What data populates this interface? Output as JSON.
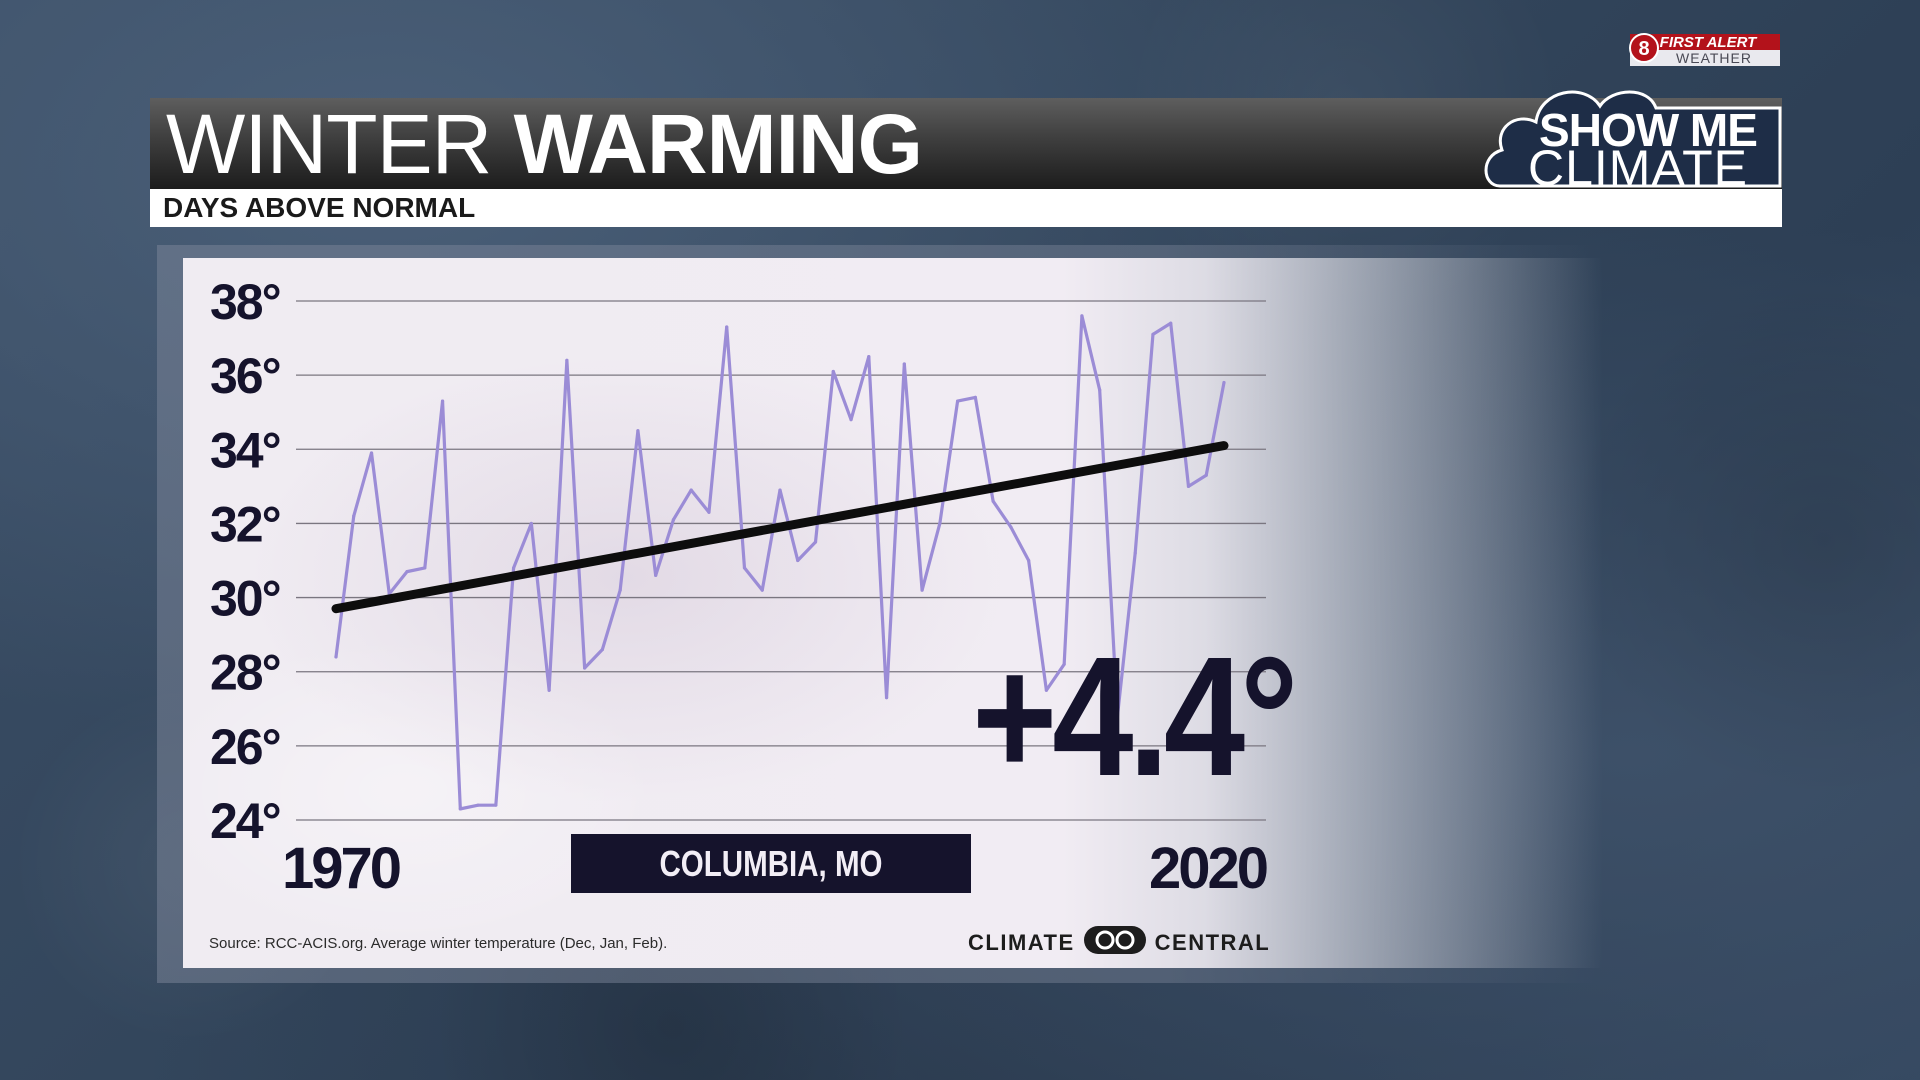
{
  "header": {
    "title_light": "WINTER ",
    "title_bold": "WARMING",
    "subtitle": "DAYS ABOVE NORMAL"
  },
  "logo": {
    "channel": "8",
    "top_line": "FIRST ALERT",
    "top_line_2": "WEATHER",
    "main_line_1": "SHOW ME",
    "main_line_2": "CLIMATE"
  },
  "chart_data": {
    "type": "line",
    "title": "",
    "xlabel": "",
    "ylabel": "",
    "x_tick_labels": [
      "1970",
      "2020"
    ],
    "y_tick_labels": [
      "38°",
      "36°",
      "34°",
      "32°",
      "30°",
      "28°",
      "26°",
      "24°"
    ],
    "xlim": [
      1970,
      2020
    ],
    "ylim": [
      24,
      38
    ],
    "grid": true,
    "legend": "none",
    "series": [
      {
        "x": [
          1970,
          1971,
          1972,
          1973,
          1974,
          1975,
          1976,
          1977,
          1978,
          1979,
          1980,
          1981,
          1982,
          1983,
          1984,
          1985,
          1986,
          1987,
          1988,
          1989,
          1990,
          1991,
          1992,
          1993,
          1994,
          1995,
          1996,
          1997,
          1998,
          1999,
          2000,
          2001,
          2002,
          2003,
          2004,
          2005,
          2006,
          2007,
          2008,
          2009,
          2010,
          2011,
          2012,
          2013,
          2014,
          2015,
          2016,
          2017,
          2018,
          2019,
          2020
        ],
        "values": [
          28.4,
          32.2,
          33.9,
          30.1,
          30.7,
          30.8,
          35.3,
          24.3,
          24.4,
          24.4,
          30.8,
          32.0,
          27.5,
          36.4,
          28.1,
          28.6,
          30.2,
          34.5,
          30.6,
          32.1,
          32.9,
          32.3,
          37.3,
          30.8,
          30.2,
          32.9,
          31.0,
          31.5,
          36.1,
          34.8,
          36.5,
          27.3,
          36.3,
          30.2,
          32.0,
          35.3,
          35.4,
          32.6,
          31.9,
          31.0,
          27.5,
          28.2,
          37.6,
          35.6,
          26.8,
          31.2,
          37.1,
          37.4,
          33.0,
          33.3,
          35.8
        ]
      },
      {
        "x": [
          1970,
          2020
        ],
        "values": [
          29.7,
          34.1
        ]
      }
    ],
    "colors": {
      "temperature_line": "#9b8cd6",
      "trend_line": "#0d0d0d"
    }
  },
  "annotations": {
    "change": "+4.4°",
    "location": "COLUMBIA, MO"
  },
  "footer": {
    "source": "Source: RCC-ACIS.org. Average winter temperature (Dec, Jan, Feb).",
    "brand_left": "CLIMATE",
    "brand_right": "CENTRAL"
  }
}
